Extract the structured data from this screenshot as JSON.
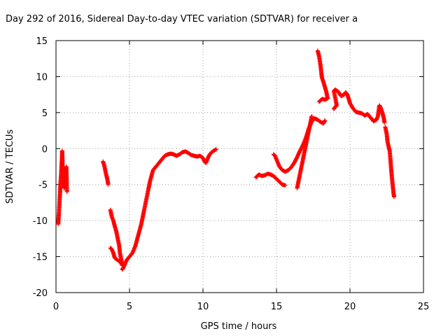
{
  "chart_data": {
    "type": "scatter",
    "title": "Day 292 of 2016, Sidereal Day-to-day VTEC variation (SDTVAR) for receiver a",
    "xlabel": "GPS time / hours",
    "ylabel": "SDTVAR / TECUs",
    "xlim": [
      0,
      25
    ],
    "ylim": [
      -20,
      15
    ],
    "xticks": [
      0,
      5,
      10,
      15,
      20,
      25
    ],
    "yticks": [
      -20,
      -15,
      -10,
      -5,
      0,
      5,
      10,
      15
    ],
    "grid": true,
    "marker": "plus",
    "color": "#ff0000",
    "series": [
      {
        "segments": [
          [
            [
              0.15,
              -10.5
            ],
            [
              0.2,
              -9
            ],
            [
              0.25,
              -7
            ],
            [
              0.3,
              -5
            ],
            [
              0.35,
              -3.5
            ],
            [
              0.4,
              -1.5
            ],
            [
              0.42,
              -0.3
            ],
            [
              0.45,
              -2.5
            ],
            [
              0.5,
              -4
            ],
            [
              0.55,
              -5.5
            ],
            [
              0.6,
              -4.5
            ],
            [
              0.65,
              -3.5
            ],
            [
              0.7,
              -2.5
            ],
            [
              0.72,
              -4
            ],
            [
              0.75,
              -6
            ]
          ],
          [
            [
              3.2,
              -1.8
            ],
            [
              3.3,
              -2.5
            ],
            [
              3.4,
              -3.5
            ],
            [
              3.5,
              -4.3
            ],
            [
              3.55,
              -5
            ]
          ],
          [
            [
              3.7,
              -8.5
            ],
            [
              3.8,
              -9.5
            ],
            [
              3.9,
              -10
            ],
            [
              4.0,
              -10.8
            ],
            [
              4.1,
              -11.5
            ],
            [
              4.2,
              -12.5
            ],
            [
              4.3,
              -13.5
            ],
            [
              4.35,
              -14.5
            ],
            [
              4.45,
              -15.5
            ],
            [
              4.5,
              -16.2
            ],
            [
              4.4,
              -15.8
            ],
            [
              4.2,
              -15.5
            ],
            [
              4.0,
              -15.2
            ],
            [
              3.9,
              -14.5
            ],
            [
              3.8,
              -14
            ],
            [
              3.7,
              -13.8
            ]
          ],
          [
            [
              4.5,
              -16.8
            ],
            [
              4.6,
              -16.5
            ],
            [
              4.7,
              -16
            ],
            [
              4.8,
              -15.5
            ],
            [
              5.0,
              -15
            ],
            [
              5.2,
              -14.5
            ],
            [
              5.4,
              -13.5
            ],
            [
              5.6,
              -12
            ],
            [
              5.8,
              -10.5
            ],
            [
              6.0,
              -8.5
            ],
            [
              6.2,
              -6.5
            ],
            [
              6.4,
              -4.5
            ],
            [
              6.6,
              -3
            ],
            [
              6.8,
              -2.5
            ],
            [
              7.0,
              -2
            ],
            [
              7.2,
              -1.5
            ],
            [
              7.4,
              -1
            ],
            [
              7.6,
              -0.8
            ],
            [
              7.8,
              -0.7
            ],
            [
              8.0,
              -0.8
            ],
            [
              8.2,
              -1
            ],
            [
              8.4,
              -0.8
            ],
            [
              8.6,
              -0.5
            ],
            [
              8.8,
              -0.4
            ],
            [
              9.0,
              -0.6
            ],
            [
              9.2,
              -0.9
            ],
            [
              9.4,
              -1
            ],
            [
              9.6,
              -1.1
            ],
            [
              9.8,
              -1.0
            ],
            [
              10.0,
              -1.3
            ],
            [
              10.1,
              -1.8
            ],
            [
              10.2,
              -2
            ],
            [
              10.3,
              -1.5
            ],
            [
              10.4,
              -1.0
            ],
            [
              10.5,
              -0.7
            ],
            [
              10.6,
              -0.5
            ],
            [
              10.8,
              -0.2
            ],
            [
              10.9,
              -0.1
            ]
          ],
          [
            [
              13.6,
              -4
            ],
            [
              13.8,
              -3.6
            ],
            [
              14.0,
              -3.8
            ],
            [
              14.2,
              -3.7
            ],
            [
              14.4,
              -3.5
            ],
            [
              14.6,
              -3.6
            ],
            [
              14.8,
              -3.8
            ],
            [
              15.0,
              -4.2
            ],
            [
              15.2,
              -4.6
            ],
            [
              15.4,
              -5.0
            ],
            [
              15.6,
              -5.1
            ]
          ],
          [
            [
              14.8,
              -0.8
            ],
            [
              14.9,
              -1
            ],
            [
              15.0,
              -1.5
            ],
            [
              15.1,
              -2
            ],
            [
              15.2,
              -2.5
            ],
            [
              15.4,
              -3
            ],
            [
              15.6,
              -3.2
            ],
            [
              15.8,
              -3.0
            ],
            [
              16.0,
              -2.6
            ],
            [
              16.2,
              -2.0
            ],
            [
              16.4,
              -1.2
            ],
            [
              16.6,
              -0.3
            ],
            [
              16.8,
              0.5
            ],
            [
              17.0,
              1.5
            ],
            [
              17.2,
              2.8
            ],
            [
              17.4,
              3.8
            ],
            [
              17.6,
              4.2
            ],
            [
              17.8,
              4.0
            ],
            [
              18.0,
              3.7
            ],
            [
              18.2,
              3.5
            ],
            [
              18.3,
              3.9
            ]
          ],
          [
            [
              16.4,
              -5.5
            ],
            [
              16.5,
              -4.5
            ],
            [
              16.6,
              -3.5
            ],
            [
              16.7,
              -2.5
            ],
            [
              16.8,
              -1.5
            ],
            [
              16.9,
              -0.5
            ],
            [
              17.0,
              0.5
            ],
            [
              17.1,
              1.5
            ],
            [
              17.2,
              2.5
            ],
            [
              17.3,
              3.5
            ],
            [
              17.4,
              4.5
            ]
          ],
          [
            [
              17.8,
              13.6
            ],
            [
              17.9,
              12.8
            ],
            [
              18.0,
              11.5
            ],
            [
              18.05,
              10.5
            ],
            [
              18.1,
              9.8
            ],
            [
              18.2,
              9.2
            ],
            [
              18.3,
              8.5
            ],
            [
              18.4,
              7.8
            ],
            [
              18.45,
              7.2
            ],
            [
              18.5,
              7.0
            ],
            [
              18.3,
              6.8
            ],
            [
              18.1,
              6.9
            ],
            [
              17.9,
              6.5
            ]
          ],
          [
            [
              18.9,
              5.5
            ],
            [
              19.0,
              5.8
            ],
            [
              19.1,
              6.0
            ],
            [
              18.9,
              8.0
            ],
            [
              19.0,
              8.2
            ],
            [
              19.2,
              7.9
            ],
            [
              19.4,
              7.3
            ],
            [
              19.6,
              7.5
            ],
            [
              19.7,
              7.8
            ],
            [
              19.8,
              7.6
            ],
            [
              19.9,
              7.0
            ],
            [
              20.0,
              6.3
            ],
            [
              20.2,
              5.6
            ],
            [
              20.4,
              5.1
            ],
            [
              20.6,
              5.0
            ],
            [
              20.8,
              4.9
            ],
            [
              21.0,
              4.6
            ],
            [
              21.2,
              4.8
            ],
            [
              21.4,
              4.3
            ],
            [
              21.6,
              3.8
            ],
            [
              21.8,
              4.0
            ],
            [
              21.9,
              4.5
            ],
            [
              22.0,
              6.0
            ],
            [
              22.1,
              5.6
            ],
            [
              22.2,
              5.0
            ],
            [
              22.3,
              4.2
            ],
            [
              22.35,
              3.6
            ]
          ],
          [
            [
              22.4,
              3.0
            ],
            [
              22.5,
              2.0
            ],
            [
              22.55,
              1.0
            ],
            [
              22.6,
              0.5
            ],
            [
              22.7,
              -0.3
            ],
            [
              22.75,
              -1.5
            ],
            [
              22.8,
              -2.8
            ],
            [
              22.85,
              -4.0
            ],
            [
              22.9,
              -5.0
            ],
            [
              22.95,
              -6.0
            ],
            [
              23.0,
              -6.7
            ]
          ]
        ]
      }
    ]
  }
}
